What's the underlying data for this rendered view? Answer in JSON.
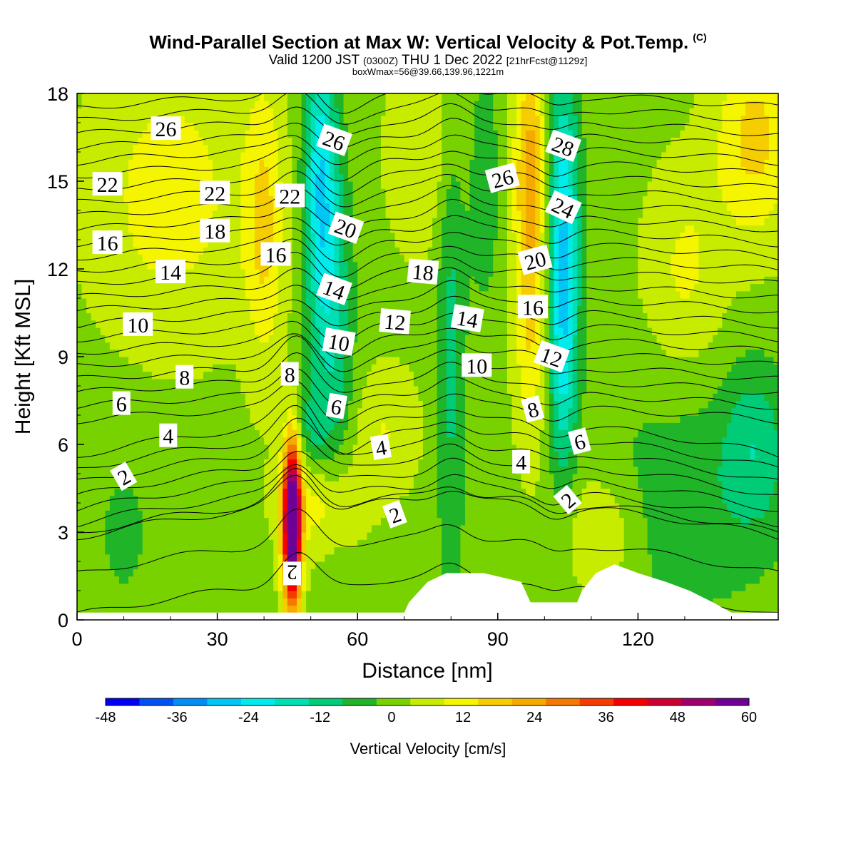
{
  "header": {
    "title": "Wind-Parallel Section at Max W: Vertical Velocity & Pot.Temp.",
    "title_mark": "(C)",
    "valid_prefix": "Valid 1200 JST",
    "valid_utc": "(0300Z)",
    "valid_date": "THU 1 Dec 2022",
    "valid_fcst": "[21hrFcst@1129z]",
    "box_info": "boxWmax=56@39.66,139.96,1221m"
  },
  "chart_data": {
    "type": "heatmap",
    "xlabel": "Distance [nm]",
    "ylabel": "Height [Kft MSL]",
    "xlim": [
      0,
      150
    ],
    "ylim": [
      0,
      18
    ],
    "x_ticks": [
      "0",
      "30",
      "60",
      "90",
      "120"
    ],
    "y_ticks": [
      "0",
      "3",
      "6",
      "9",
      "12",
      "15",
      "18"
    ],
    "colorbar": {
      "title": "Vertical Velocity [cm/s]",
      "tick_labels": [
        "-48",
        "-36",
        "-24",
        "-12",
        "0",
        "12",
        "24",
        "36",
        "48",
        "60"
      ],
      "levels": [
        -48,
        -42,
        -36,
        -30,
        -24,
        -18,
        -12,
        -6,
        0,
        6,
        12,
        18,
        24,
        30,
        36,
        42,
        48,
        54,
        60
      ],
      "colors": [
        "#0000f5",
        "#0050f5",
        "#0090f5",
        "#00c5f5",
        "#00ecec",
        "#00e0b4",
        "#00cc78",
        "#20b428",
        "#78d200",
        "#c8ec00",
        "#f5f500",
        "#f5cd00",
        "#f5aa00",
        "#f57800",
        "#f53c00",
        "#f50000",
        "#cd0032",
        "#a0006e",
        "#6e0096"
      ]
    },
    "velocity_features": [
      {
        "x": 46,
        "y": 3.8,
        "sx": 1.3,
        "sy": 1.8,
        "value": 56
      },
      {
        "x": 46,
        "y": 2.0,
        "sx": 1.5,
        "sy": 1.8,
        "value": 26
      },
      {
        "x": 52,
        "y": 4.0,
        "sx": 6,
        "sy": 1.2,
        "value": 12
      },
      {
        "x": 40,
        "y": 13.5,
        "sx": 3,
        "sy": 3.5,
        "value": 14
      },
      {
        "x": 97,
        "y": 15.5,
        "sx": 2.5,
        "sy": 3,
        "value": 22
      },
      {
        "x": 97,
        "y": 9.5,
        "sx": 2.5,
        "sy": 3,
        "value": 12
      },
      {
        "x": 112,
        "y": 3.0,
        "sx": 6,
        "sy": 1.6,
        "value": 10
      },
      {
        "x": 20,
        "y": 14.5,
        "sx": 12,
        "sy": 3.5,
        "value": 11
      },
      {
        "x": 75,
        "y": 16,
        "sx": 6,
        "sy": 2.5,
        "value": 8
      },
      {
        "x": 145,
        "y": 16.5,
        "sx": 6,
        "sy": 2.5,
        "value": 16
      },
      {
        "x": 130,
        "y": 12,
        "sx": 6,
        "sy": 2.5,
        "value": 9
      },
      {
        "x": 66,
        "y": 6.5,
        "sx": 5,
        "sy": 1.5,
        "value": 8
      },
      {
        "x": 52,
        "y": 15,
        "sx": 2.5,
        "sy": 3.5,
        "value": -26
      },
      {
        "x": 55,
        "y": 10,
        "sx": 3,
        "sy": 4,
        "value": -14
      },
      {
        "x": 50,
        "y": 6.5,
        "sx": 2.5,
        "sy": 1.2,
        "value": -10
      },
      {
        "x": 80,
        "y": 10,
        "sx": 2.2,
        "sy": 7,
        "value": -12
      },
      {
        "x": 104,
        "y": 13.5,
        "sx": 2.5,
        "sy": 4,
        "value": -26
      },
      {
        "x": 104,
        "y": 8.5,
        "sx": 2,
        "sy": 3,
        "value": -13
      },
      {
        "x": 87,
        "y": 15,
        "sx": 2.5,
        "sy": 3,
        "value": -9
      },
      {
        "x": 130,
        "y": 4,
        "sx": 15,
        "sy": 3,
        "value": -8
      },
      {
        "x": 145,
        "y": 6,
        "sx": 5,
        "sy": 2,
        "value": -12
      },
      {
        "x": 10,
        "y": 3,
        "sx": 6,
        "sy": 2.5,
        "value": -5
      }
    ],
    "terrain": [
      [
        0,
        0.25
      ],
      [
        70,
        0.25
      ],
      [
        71,
        0.6
      ],
      [
        75,
        1.3
      ],
      [
        79,
        1.6
      ],
      [
        84,
        1.6
      ],
      [
        87,
        1.6
      ],
      [
        95,
        1.3
      ],
      [
        97,
        0.6
      ],
      [
        107,
        0.6
      ],
      [
        108,
        1.0
      ],
      [
        111,
        1.6
      ],
      [
        115,
        1.9
      ],
      [
        120,
        1.6
      ],
      [
        126,
        1.3
      ],
      [
        131,
        1.0
      ],
      [
        136,
        0.6
      ],
      [
        140,
        0.25
      ],
      [
        150,
        0.25
      ]
    ],
    "theta_contour_count": 34,
    "contour_labels": [
      {
        "x": 19,
        "y": 16.8,
        "text": "26",
        "rot": 0
      },
      {
        "x": 6.5,
        "y": 14.9,
        "text": "22",
        "rot": 0
      },
      {
        "x": 29.5,
        "y": 14.6,
        "text": "22",
        "rot": 0
      },
      {
        "x": 45.5,
        "y": 14.5,
        "text": "22",
        "rot": 0
      },
      {
        "x": 29.5,
        "y": 13.3,
        "text": "18",
        "rot": 0
      },
      {
        "x": 6.5,
        "y": 12.9,
        "text": "16",
        "rot": 0
      },
      {
        "x": 42.5,
        "y": 12.5,
        "text": "16",
        "rot": 0
      },
      {
        "x": 20,
        "y": 11.9,
        "text": "14",
        "rot": 0
      },
      {
        "x": 13,
        "y": 10.1,
        "text": "10",
        "rot": 0
      },
      {
        "x": 23,
        "y": 8.3,
        "text": "8",
        "rot": 0
      },
      {
        "x": 9.5,
        "y": 7.4,
        "text": "6",
        "rot": 0
      },
      {
        "x": 19.5,
        "y": 6.3,
        "text": "4",
        "rot": 0
      },
      {
        "x": 10,
        "y": 4.9,
        "text": "2",
        "rot": -30
      },
      {
        "x": 45.5,
        "y": 8.4,
        "text": "8",
        "rot": 0
      },
      {
        "x": 55,
        "y": 16.4,
        "text": "26",
        "rot": 20
      },
      {
        "x": 57.5,
        "y": 13.4,
        "text": "20",
        "rot": 20
      },
      {
        "x": 55,
        "y": 11.3,
        "text": "14",
        "rot": 20
      },
      {
        "x": 56,
        "y": 9.5,
        "text": "10",
        "rot": 10
      },
      {
        "x": 55.5,
        "y": 7.3,
        "text": "6",
        "rot": 10
      },
      {
        "x": 68,
        "y": 10.2,
        "text": "12",
        "rot": 5
      },
      {
        "x": 74,
        "y": 11.9,
        "text": "18",
        "rot": 5
      },
      {
        "x": 65,
        "y": 5.9,
        "text": "4",
        "rot": -10
      },
      {
        "x": 68,
        "y": 3.6,
        "text": "2",
        "rot": -20
      },
      {
        "x": 46,
        "y": 1.6,
        "text": "2",
        "rot": 180
      },
      {
        "x": 91,
        "y": 15.1,
        "text": "26",
        "rot": -15
      },
      {
        "x": 83.5,
        "y": 10.3,
        "text": "14",
        "rot": 10
      },
      {
        "x": 85.5,
        "y": 8.7,
        "text": "10",
        "rot": 0
      },
      {
        "x": 98,
        "y": 12.3,
        "text": "20",
        "rot": -15
      },
      {
        "x": 97.5,
        "y": 10.7,
        "text": "16",
        "rot": 0
      },
      {
        "x": 97.5,
        "y": 7.2,
        "text": "8",
        "rot": -15
      },
      {
        "x": 95,
        "y": 5.4,
        "text": "4",
        "rot": 0
      },
      {
        "x": 104,
        "y": 16.2,
        "text": "28",
        "rot": 20
      },
      {
        "x": 104,
        "y": 14.1,
        "text": "24",
        "rot": 25
      },
      {
        "x": 101.5,
        "y": 9.0,
        "text": "12",
        "rot": 20
      },
      {
        "x": 107.5,
        "y": 6.1,
        "text": "6",
        "rot": -15
      },
      {
        "x": 105,
        "y": 4.1,
        "text": "2",
        "rot": -40
      }
    ]
  }
}
